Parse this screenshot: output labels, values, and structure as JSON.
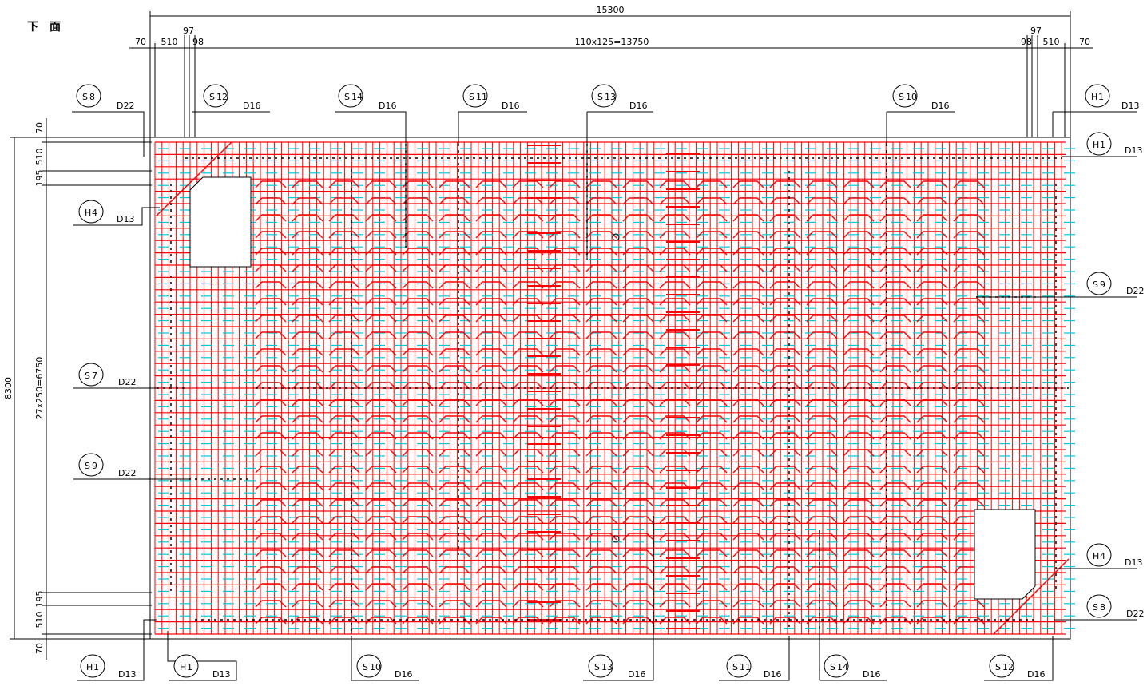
{
  "view_title": "下　面",
  "dimensions": {
    "total_width": "15300",
    "left_cover": "70",
    "left_edge": "510",
    "left_a": "97",
    "left_b": "98",
    "middle": "110x125=13750",
    "right_a": "97",
    "right_b": "98",
    "right_edge": "510",
    "right_cover": "70",
    "total_height": "8300",
    "v_top_cover": "70",
    "v_top_edge": "510",
    "v_top_b": "195",
    "v_middle": "27x250=6750",
    "v_bot_b": "195",
    "v_bot_edge": "510",
    "v_bot_cover": "70"
  },
  "colors": {
    "rebar": "#ff0000",
    "secondary": "#00c8d8",
    "line": "#000000"
  },
  "callouts_top": [
    {
      "mark": "S",
      "sub": "8",
      "size": "D22"
    },
    {
      "mark": "S",
      "sub": "12",
      "size": "D16"
    },
    {
      "mark": "S",
      "sub": "14",
      "size": "D16"
    },
    {
      "mark": "S",
      "sub": "11",
      "size": "D16"
    },
    {
      "mark": "S",
      "sub": "13",
      "size": "D16"
    },
    {
      "mark": "S",
      "sub": "10",
      "size": "D16"
    },
    {
      "mark": "H",
      "sub": "1",
      "size": "D13"
    }
  ],
  "callouts_left": [
    {
      "mark": "H",
      "sub": "4",
      "size": "D13"
    },
    {
      "mark": "S",
      "sub": "7",
      "size": "D22"
    },
    {
      "mark": "S",
      "sub": "9",
      "size": "D22"
    }
  ],
  "callouts_right": [
    {
      "mark": "H",
      "sub": "1",
      "size": "D13"
    },
    {
      "mark": "S",
      "sub": "9",
      "size": "D22"
    },
    {
      "mark": "H",
      "sub": "4",
      "size": "D13"
    },
    {
      "mark": "S",
      "sub": "8",
      "size": "D22"
    }
  ],
  "callouts_bottom": [
    {
      "mark": "H",
      "sub": "1",
      "size": "D13"
    },
    {
      "mark": "H",
      "sub": "1",
      "size": "D13"
    },
    {
      "mark": "S",
      "sub": "10",
      "size": "D16"
    },
    {
      "mark": "S",
      "sub": "13",
      "size": "D16"
    },
    {
      "mark": "S",
      "sub": "11",
      "size": "D16"
    },
    {
      "mark": "S",
      "sub": "14",
      "size": "D16"
    },
    {
      "mark": "S",
      "sub": "12",
      "size": "D16"
    }
  ]
}
